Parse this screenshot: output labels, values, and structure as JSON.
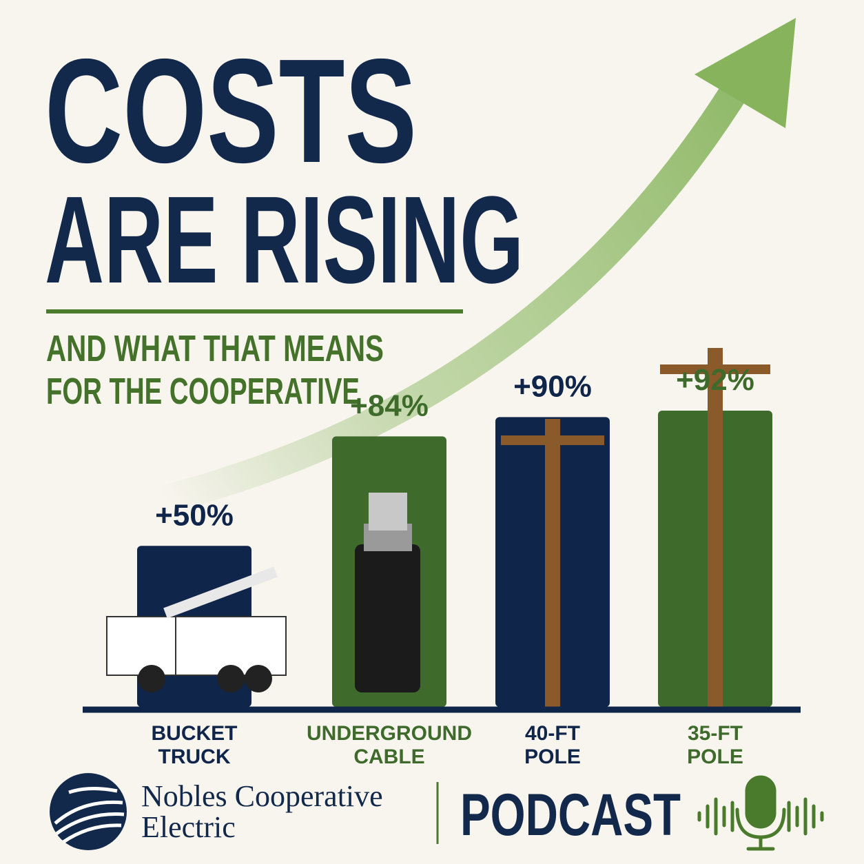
{
  "chart_data": {
    "type": "bar",
    "title": [
      "COSTS",
      "ARE RISING"
    ],
    "subtitle": [
      "AND WHAT THAT MEANS",
      "FOR THE COOPERATIVE"
    ],
    "categories": [
      "BUCKET TRUCK",
      "UNDERGROUND CABLE",
      "40-FT POLE",
      "35-FT POLE"
    ],
    "values": [
      50,
      84,
      90,
      92
    ],
    "value_labels": [
      "+50%",
      "+84%",
      "+90%",
      "+92%"
    ],
    "colors": [
      "#10254a",
      "#3e6b2b",
      "#10254a",
      "#3e6b2b"
    ],
    "footer": {
      "organization": [
        "Nobles Cooperative",
        "Electric"
      ],
      "label": "PODCAST"
    }
  }
}
